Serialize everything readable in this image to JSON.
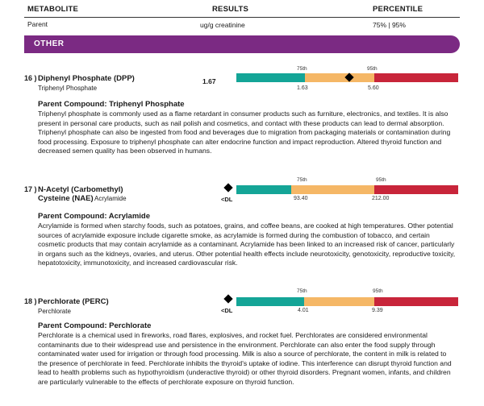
{
  "header": {
    "col1": "METABOLITE",
    "col2": "RESULTS",
    "col3": "PERCENTILE",
    "sub1": "Parent",
    "sub2": "ug/g creatinine",
    "sub3": "75% | 95%"
  },
  "section": {
    "title": "OTHER"
  },
  "items": [
    {
      "number": "16 )",
      "name": "Diphenyl Phosphate (DPP)",
      "name2": "",
      "parent_short": "Triphenyl Phosphate",
      "result": "1.67",
      "p75_label": "75th",
      "p95_label": "95th",
      "p75_value": "1.63",
      "p95_value": "5.60",
      "below_dl": "",
      "marker_fraction": 0.51,
      "parent_title": "Parent Compound: Triphenyl Phosphate",
      "description": "Triphenyl phosphate is commonly used as a flame retardant in consumer products such as furniture, electronics, and textiles. It is also present in personal care products, such as nail polish and cosmetics, and contact with these products can lead to dermal absorption. Triphenyl phosphate can also be ingested from food and beverages due to migration from packaging materials or contamination during food processing. Exposure to triphenyl phosphate can alter endocrine function and impact reproduction. Altered thyroid function and decreased semen quality has been observed in humans."
    },
    {
      "number": "17 )",
      "name": "N-Acetyl (Carbomethyl)",
      "name2": "Cysteine (NAE)",
      "parent_short": "Acrylamide",
      "result": "",
      "p75_label": "75th",
      "p95_label": "95th",
      "p75_value": "93.40",
      "p95_value": "212.00",
      "below_dl": "<DL",
      "marker_fraction": 0,
      "parent_title": "Parent Compound: Acrylamide",
      "description": "Acrylamide is formed when starchy foods, such as potatoes, grains, and coffee beans, are cooked at high temperatures. Other potential sources of acrylamide exposure include cigarette smoke, as acrylamide is formed during the combustion of tobacco, and certain cosmetic products that may contain acrylamide as a contaminant. Acrylamide has been linked to an increased risk of cancer, particularly in organs such as the kidneys, ovaries, and uterus. Other potential health effects include neurotoxicity, genotoxicity, reproductive toxicity, hepatotoxicity, immunotoxicity, and increased cardiovascular risk."
    },
    {
      "number": "18 )",
      "name": "Perchlorate (PERC)",
      "name2": "",
      "parent_short": "Perchlorate",
      "result": "",
      "p75_label": "75th",
      "p95_label": "95th",
      "p75_value": "4.01",
      "p95_value": "9.39",
      "below_dl": "<DL",
      "marker_fraction": 0,
      "parent_title": "Parent Compound: Perchlorate",
      "description": "Perchlorate is a chemical used in fireworks, road flares, explosives, and rocket fuel. Perchlorates are considered environmental contaminants due to their widespread use and persistence in the environment. Perchlorate can also enter the food supply through contaminated water used for irrigation or through food processing. Milk is also a source of perchlorate, the content in milk is related to the presence of perchlorate in feed. Perchlorate inhibits the thyroid's uptake of iodine. This interference can disrupt thyroid function and lead to health problems such as hypothyroidism (underactive thyroid) or other thyroid disorders. Pregnant women, infants, and children are particularly vulnerable to the effects of perchlorate exposure on thyroid function."
    }
  ],
  "colors": {
    "section": "#7b2a83",
    "green": "#14a597",
    "orange": "#f5b766",
    "red": "#c8253a"
  }
}
